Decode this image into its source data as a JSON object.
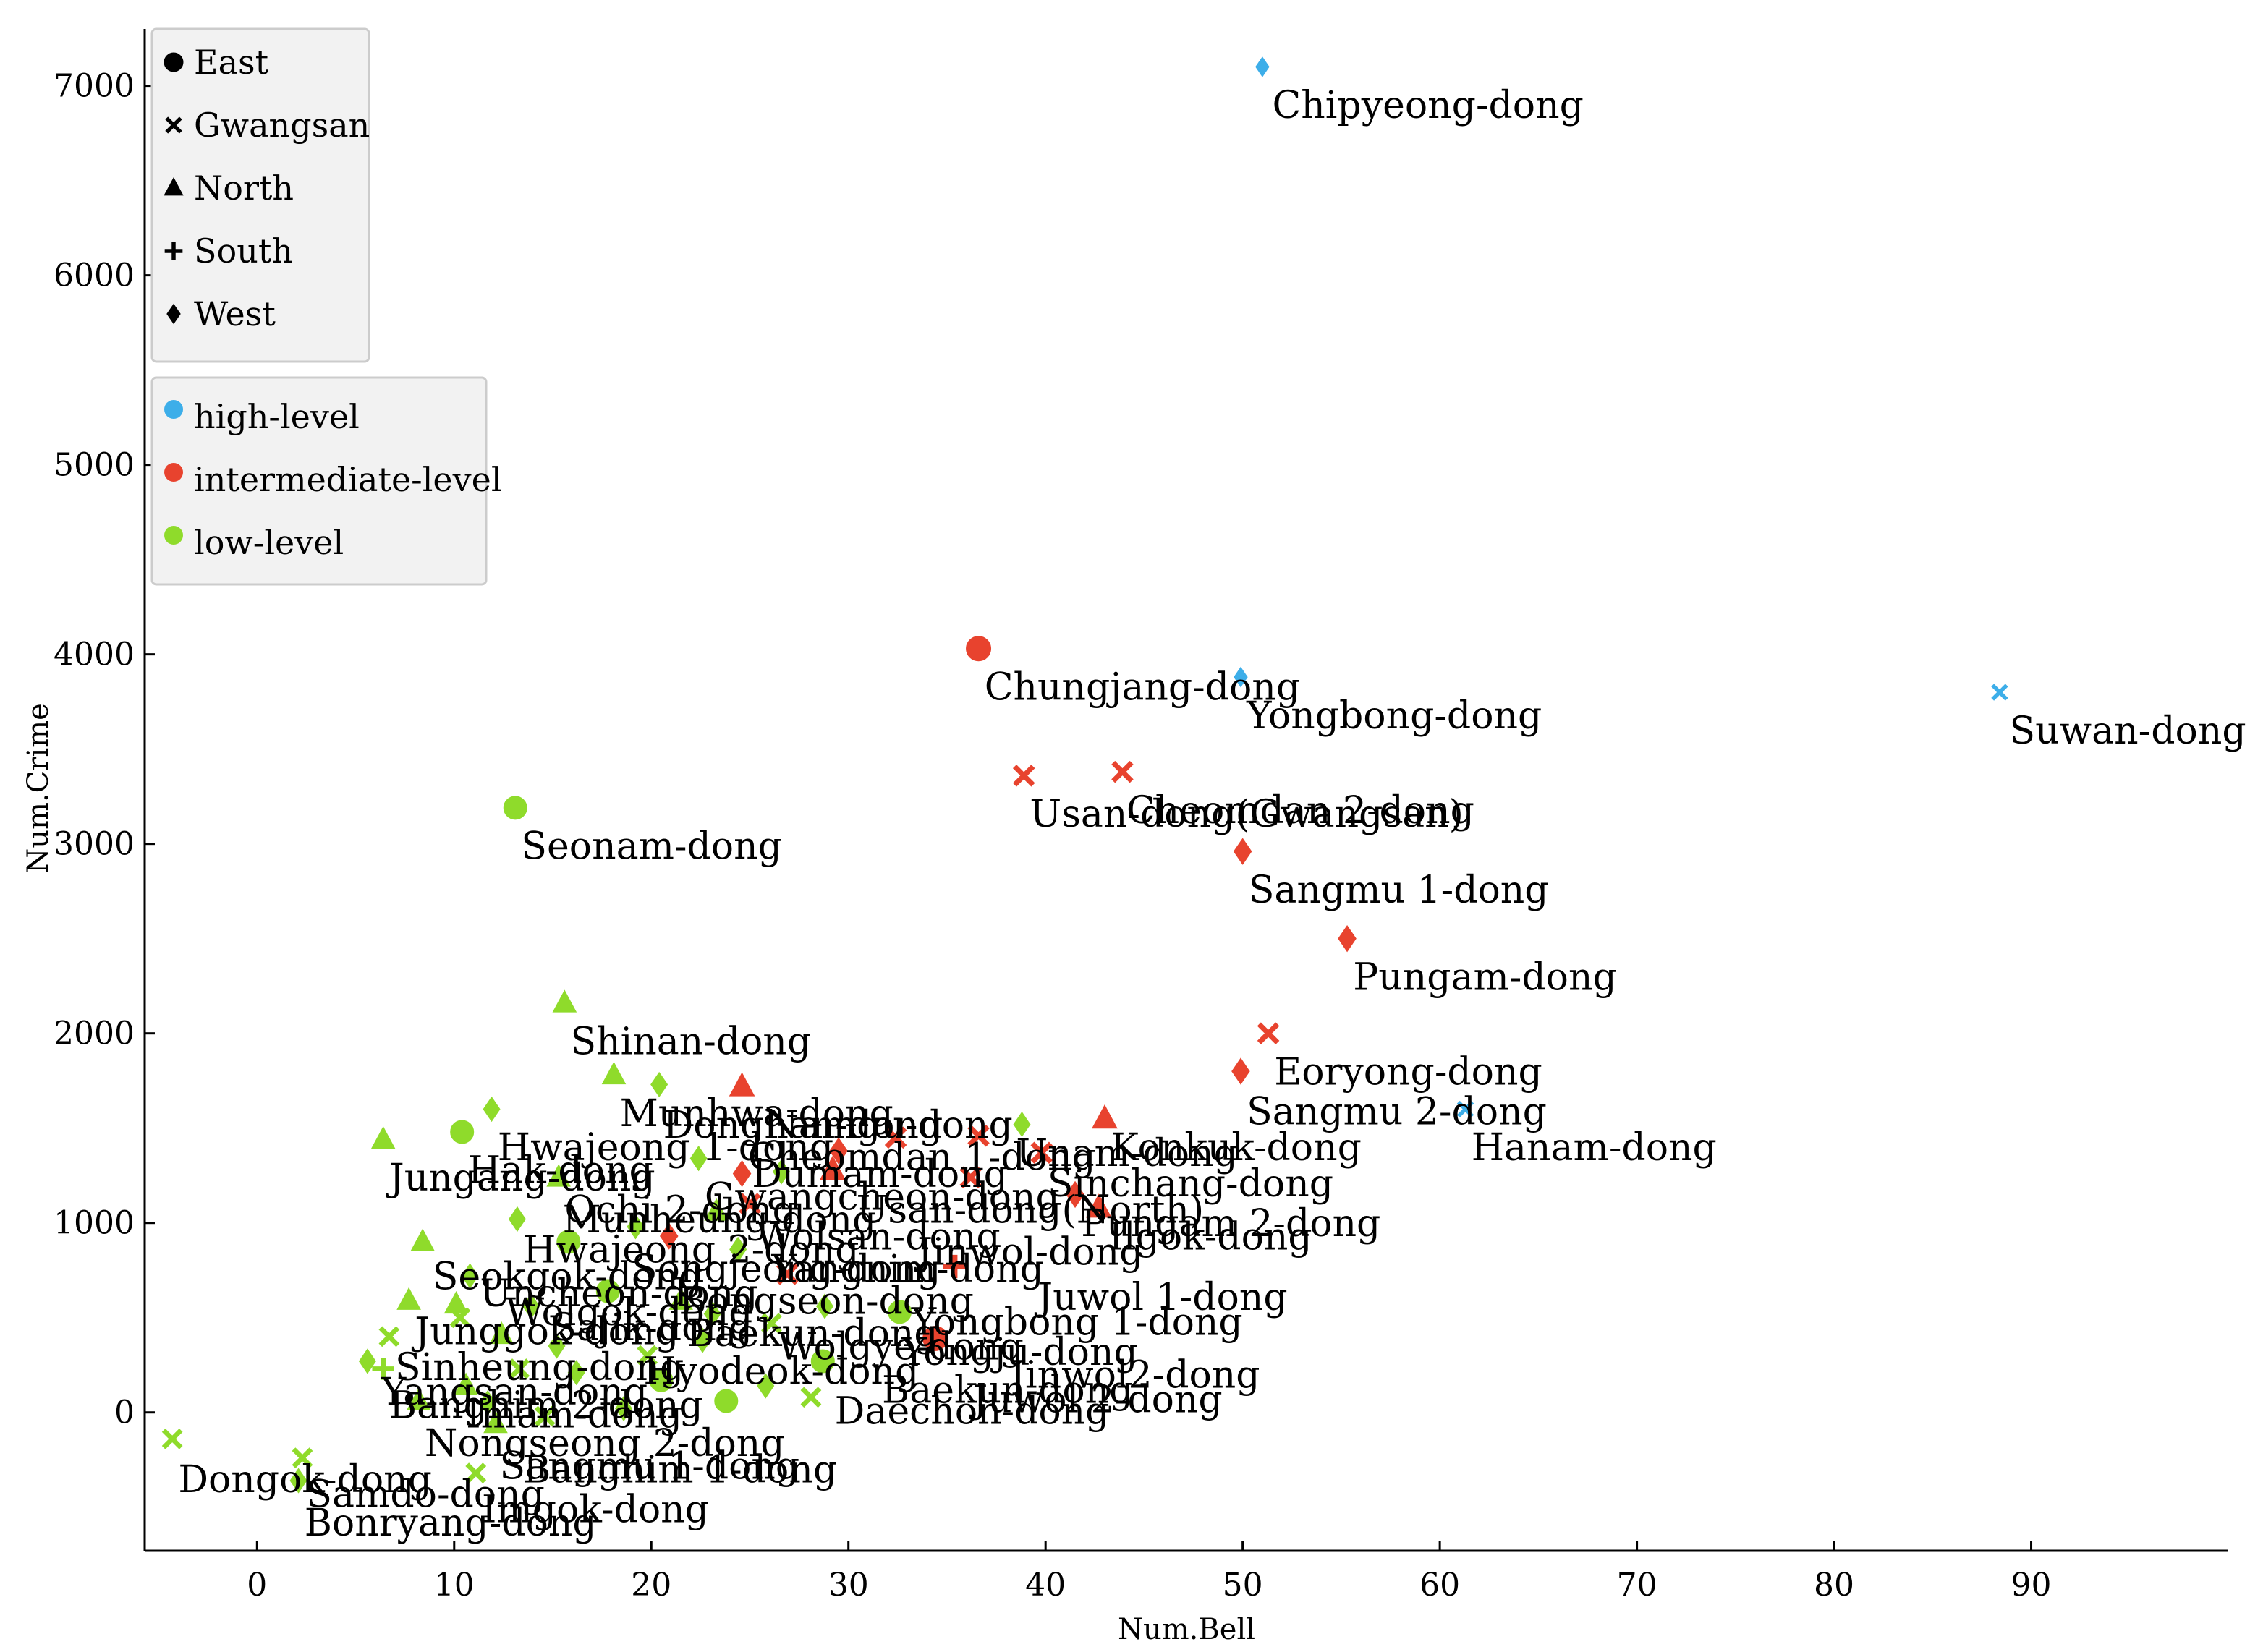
{
  "chart_data": {
    "type": "scatter",
    "xlabel": "Num.Bell",
    "ylabel": "Num.Crime",
    "xlim": [
      -5.7,
      100
    ],
    "ylim": [
      -730,
      7300
    ],
    "xticks": [
      0,
      10,
      20,
      30,
      40,
      50,
      60,
      70,
      80,
      90
    ],
    "yticks": [
      0,
      1000,
      2000,
      3000,
      4000,
      5000,
      6000,
      7000
    ],
    "grid": false,
    "legend_shape": {
      "placement": "top-left",
      "entries": [
        {
          "label": "East",
          "marker": "circle"
        },
        {
          "label": "Gwangsan",
          "marker": "x"
        },
        {
          "label": "North",
          "marker": "triangle"
        },
        {
          "label": "South",
          "marker": "plus"
        },
        {
          "label": "West",
          "marker": "diamond"
        }
      ]
    },
    "legend_color": {
      "placement": "top-left",
      "entries": [
        {
          "label": "high-level",
          "color": "#3daee9"
        },
        {
          "label": "intermediate-level",
          "color": "#e8432e"
        },
        {
          "label": "low-level",
          "color": "#8fdb2b"
        }
      ]
    },
    "colors": {
      "high": "#3daee9",
      "mid": "#e8432e",
      "low": "#8fdb2b"
    },
    "points": [
      {
        "x": 51,
        "y": 7100,
        "m": "diamond",
        "c": "high"
      },
      {
        "x": 88.4,
        "y": 3800,
        "m": "x",
        "c": "high"
      },
      {
        "x": 49.9,
        "y": 3880,
        "m": "diamond",
        "c": "high"
      },
      {
        "x": 61.3,
        "y": 1600,
        "m": "x",
        "c": "high"
      },
      {
        "x": 36.6,
        "y": 4030,
        "m": "circle",
        "c": "mid"
      },
      {
        "x": 38.9,
        "y": 3360,
        "m": "x",
        "c": "mid"
      },
      {
        "x": 43.9,
        "y": 3380,
        "m": "x",
        "c": "mid"
      },
      {
        "x": 50,
        "y": 2960,
        "m": "diamond",
        "c": "mid"
      },
      {
        "x": 55.3,
        "y": 2500,
        "m": "diamond",
        "c": "mid"
      },
      {
        "x": 51.3,
        "y": 2000,
        "m": "x",
        "c": "mid"
      },
      {
        "x": 49.9,
        "y": 1800,
        "m": "diamond",
        "c": "mid"
      },
      {
        "x": 24.6,
        "y": 1720,
        "m": "triangle",
        "c": "mid"
      },
      {
        "x": 43,
        "y": 1550,
        "m": "triangle",
        "c": "mid"
      },
      {
        "x": 36.6,
        "y": 1460,
        "m": "x",
        "c": "mid"
      },
      {
        "x": 32.4,
        "y": 1450,
        "m": "x",
        "c": "mid"
      },
      {
        "x": 39.8,
        "y": 1370,
        "m": "x",
        "c": "mid"
      },
      {
        "x": 29.5,
        "y": 1380,
        "m": "diamond",
        "c": "mid"
      },
      {
        "x": 24.6,
        "y": 1260,
        "m": "diamond",
        "c": "mid"
      },
      {
        "x": 29.2,
        "y": 1280,
        "m": "triangle",
        "c": "mid"
      },
      {
        "x": 36.2,
        "y": 1240,
        "m": "x",
        "c": "mid"
      },
      {
        "x": 41.5,
        "y": 1150,
        "m": "diamond",
        "c": "mid"
      },
      {
        "x": 42.7,
        "y": 1080,
        "m": "triangle",
        "c": "mid"
      },
      {
        "x": 25,
        "y": 1100,
        "m": "x",
        "c": "mid"
      },
      {
        "x": 20.9,
        "y": 930,
        "m": "diamond",
        "c": "mid"
      },
      {
        "x": 35.4,
        "y": 770,
        "m": "plus",
        "c": "mid"
      },
      {
        "x": 26.9,
        "y": 730,
        "m": "x",
        "c": "mid"
      },
      {
        "x": 34.4,
        "y": 390,
        "m": "circle",
        "c": "mid"
      },
      {
        "x": 13.1,
        "y": 3190,
        "m": "circle",
        "c": "low"
      },
      {
        "x": 15.6,
        "y": 2160,
        "m": "triangle",
        "c": "low"
      },
      {
        "x": 18.1,
        "y": 1780,
        "m": "triangle",
        "c": "low"
      },
      {
        "x": 20.4,
        "y": 1730,
        "m": "diamond",
        "c": "low"
      },
      {
        "x": 11.9,
        "y": 1600,
        "m": "diamond",
        "c": "low"
      },
      {
        "x": 10.4,
        "y": 1480,
        "m": "circle",
        "c": "low"
      },
      {
        "x": 6.4,
        "y": 1440,
        "m": "triangle",
        "c": "low"
      },
      {
        "x": 22.4,
        "y": 1340,
        "m": "diamond",
        "c": "low"
      },
      {
        "x": 38.8,
        "y": 1520,
        "m": "diamond",
        "c": "low"
      },
      {
        "x": 15.3,
        "y": 1240,
        "m": "triangle",
        "c": "low"
      },
      {
        "x": 13.2,
        "y": 1020,
        "m": "diamond",
        "c": "low"
      },
      {
        "x": 8.4,
        "y": 900,
        "m": "triangle",
        "c": "low"
      },
      {
        "x": 15.8,
        "y": 900,
        "m": "circle",
        "c": "low"
      },
      {
        "x": 26.6,
        "y": 1270,
        "m": "diamond",
        "c": "low"
      },
      {
        "x": 19.2,
        "y": 980,
        "m": "diamond",
        "c": "low"
      },
      {
        "x": 23.3,
        "y": 1060,
        "m": "triangle",
        "c": "low"
      },
      {
        "x": 24.4,
        "y": 860,
        "m": "diamond",
        "c": "low"
      },
      {
        "x": 7.7,
        "y": 590,
        "m": "triangle",
        "c": "low"
      },
      {
        "x": 10.8,
        "y": 720,
        "m": "diamond",
        "c": "low"
      },
      {
        "x": 10.1,
        "y": 570,
        "m": "triangle",
        "c": "low"
      },
      {
        "x": 10.3,
        "y": 500,
        "m": "x",
        "c": "low"
      },
      {
        "x": 13.9,
        "y": 560,
        "m": "diamond",
        "c": "low"
      },
      {
        "x": 17.8,
        "y": 640,
        "m": "circle",
        "c": "low"
      },
      {
        "x": 21.5,
        "y": 590,
        "m": "triangle",
        "c": "low"
      },
      {
        "x": 23.1,
        "y": 520,
        "m": "diamond",
        "c": "low"
      },
      {
        "x": 26.1,
        "y": 470,
        "m": "x",
        "c": "low"
      },
      {
        "x": 28.8,
        "y": 560,
        "m": "diamond",
        "c": "low"
      },
      {
        "x": 32.6,
        "y": 530,
        "m": "circle",
        "c": "low"
      },
      {
        "x": 6.7,
        "y": 400,
        "m": "x",
        "c": "low"
      },
      {
        "x": 12.4,
        "y": 410,
        "m": "triangle",
        "c": "low"
      },
      {
        "x": 15.2,
        "y": 350,
        "m": "diamond",
        "c": "low"
      },
      {
        "x": 19.8,
        "y": 300,
        "m": "x",
        "c": "low"
      },
      {
        "x": 22.6,
        "y": 380,
        "m": "diamond",
        "c": "low"
      },
      {
        "x": 28.7,
        "y": 270,
        "m": "circle",
        "c": "low"
      },
      {
        "x": 5.6,
        "y": 270,
        "m": "diamond",
        "c": "low"
      },
      {
        "x": 6.4,
        "y": 230,
        "m": "plus",
        "c": "low"
      },
      {
        "x": 10.6,
        "y": 140,
        "m": "triangle",
        "c": "low"
      },
      {
        "x": 13.3,
        "y": 230,
        "m": "x",
        "c": "low"
      },
      {
        "x": 16.2,
        "y": 210,
        "m": "diamond",
        "c": "low"
      },
      {
        "x": 20.5,
        "y": 170,
        "m": "circle",
        "c": "low"
      },
      {
        "x": 25.8,
        "y": 140,
        "m": "diamond",
        "c": "low"
      },
      {
        "x": 28.1,
        "y": 80,
        "m": "x",
        "c": "low"
      },
      {
        "x": 8.2,
        "y": 60,
        "m": "triangle",
        "c": "low"
      },
      {
        "x": 11.7,
        "y": 50,
        "m": "diamond",
        "c": "low"
      },
      {
        "x": 14.6,
        "y": -20,
        "m": "x",
        "c": "low"
      },
      {
        "x": 18.6,
        "y": 20,
        "m": "diamond",
        "c": "low"
      },
      {
        "x": 23.8,
        "y": 60,
        "m": "circle",
        "c": "low"
      },
      {
        "x": 12.1,
        "y": -60,
        "m": "triangle",
        "c": "low"
      },
      {
        "x": -4.3,
        "y": -140,
        "m": "x",
        "c": "low"
      },
      {
        "x": 2.3,
        "y": -240,
        "m": "x",
        "c": "low"
      },
      {
        "x": 11.1,
        "y": -320,
        "m": "x",
        "c": "low"
      },
      {
        "x": 2.1,
        "y": -360,
        "m": "diamond",
        "c": "low"
      }
    ],
    "labels": [
      {
        "t": "Chipyeong-dong",
        "x": 51.5,
        "y": 6830
      },
      {
        "t": "Suwan-dong",
        "x": 88.9,
        "y": 3530
      },
      {
        "t": "Chungjang-dong",
        "x": 36.9,
        "y": 3760
      },
      {
        "t": "Yongbong-dong",
        "x": 50.2,
        "y": 3610
      },
      {
        "t": "Usan-dong(Gwangsan)",
        "x": 39.2,
        "y": 3090
      },
      {
        "t": "Cheomdan 2-dong",
        "x": 44.1,
        "y": 3110
      },
      {
        "t": "Sangmu 1-dong",
        "x": 50.3,
        "y": 2690
      },
      {
        "t": "Pungam-dong",
        "x": 55.6,
        "y": 2230
      },
      {
        "t": "Seonam-dong",
        "x": 13.4,
        "y": 2920
      },
      {
        "t": "Shinan-dong",
        "x": 15.9,
        "y": 1890
      },
      {
        "t": "Eoryong-dong",
        "x": 51.6,
        "y": 1730
      },
      {
        "t": "Sangmu 2-dong",
        "x": 50.2,
        "y": 1520
      },
      {
        "t": "Hanam-dong",
        "x": 61.6,
        "y": 1330
      },
      {
        "t": "Munhwa-dong",
        "x": 18.4,
        "y": 1510
      },
      {
        "t": "Donghan-dong",
        "x": 20.6,
        "y": 1450
      },
      {
        "t": "Namgu-dong",
        "x": 25.8,
        "y": 1450
      },
      {
        "t": "Hwajeong 1-dong",
        "x": 12.2,
        "y": 1330
      },
      {
        "t": "Cheomdan 1-dong",
        "x": 24.9,
        "y": 1280
      },
      {
        "t": "Konkuk-dong",
        "x": 43.3,
        "y": 1330
      },
      {
        "t": "Unam-dong",
        "x": 38.5,
        "y": 1300
      },
      {
        "t": "Jungang-dong",
        "x": 6.7,
        "y": 1170
      },
      {
        "t": "Hak-dong",
        "x": 10.7,
        "y": 1210
      },
      {
        "t": "Dumam-dong",
        "x": 25.1,
        "y": 1190
      },
      {
        "t": "Sinchang-dong",
        "x": 40.1,
        "y": 1140
      },
      {
        "t": "Gwangcheon-dong",
        "x": 22.7,
        "y": 1070
      },
      {
        "t": "Ochi 2-dong",
        "x": 15.6,
        "y": 1000
      },
      {
        "t": "Munheung-dong",
        "x": 15.5,
        "y": 950
      },
      {
        "t": "Usan-dong(North)",
        "x": 30.4,
        "y": 1000
      },
      {
        "t": "Pungam 2-dong",
        "x": 41.8,
        "y": 930
      },
      {
        "t": "Ilgok-dong",
        "x": 43.2,
        "y": 860
      },
      {
        "t": "Hwajeong 2-dong",
        "x": 13.5,
        "y": 790
      },
      {
        "t": "Wolsan-dong",
        "x": 25.3,
        "y": 860
      },
      {
        "t": "Seokgok-dong",
        "x": 8.9,
        "y": 650
      },
      {
        "t": "Songjeong-dong",
        "x": 19,
        "y": 690
      },
      {
        "t": "Jinwol-dong",
        "x": 33.5,
        "y": 780
      },
      {
        "t": "Yangnim-dong",
        "x": 26.1,
        "y": 690
      },
      {
        "t": "Uncheon-dong",
        "x": 11.3,
        "y": 560
      },
      {
        "t": "Wolgok-dong",
        "x": 12.6,
        "y": 460
      },
      {
        "t": "Juwol 1-dong",
        "x": 39.6,
        "y": 540
      },
      {
        "t": "Bongseon-dong",
        "x": 21.4,
        "y": 520
      },
      {
        "t": "Yongbong 1-dong",
        "x": 33.2,
        "y": 410
      },
      {
        "t": "Junggok-dong",
        "x": 8,
        "y": 360
      },
      {
        "t": "Sajik-dong",
        "x": 14.9,
        "y": 380
      },
      {
        "t": "Baekun-dong",
        "x": 21.8,
        "y": 350
      },
      {
        "t": "Yongju-dong",
        "x": 32.7,
        "y": 250
      },
      {
        "t": "Wolgye-dong",
        "x": 26.4,
        "y": 280
      },
      {
        "t": "Sinheung-dong",
        "x": 7,
        "y": 170
      },
      {
        "t": "Jinwol2-dong",
        "x": 38.2,
        "y": 130
      },
      {
        "t": "Yangsan-dong",
        "x": 6.3,
        "y": 40
      },
      {
        "t": "Hyodeok-dong",
        "x": 19.6,
        "y": 150
      },
      {
        "t": "Baekun-dong",
        "x": 31.7,
        "y": 50
      },
      {
        "t": "Daechon-dong",
        "x": 29.3,
        "y": -60
      },
      {
        "t": "Juwol 2-dong",
        "x": 36.3,
        "y": 0
      },
      {
        "t": "Banghim 2-dong",
        "x": 6.7,
        "y": -30
      },
      {
        "t": "Imam-dong",
        "x": 10.6,
        "y": -80
      },
      {
        "t": "Nongseong 2-dong",
        "x": 8.5,
        "y": -230
      },
      {
        "t": "Sangmu 1-dong",
        "x": 12.3,
        "y": -350
      },
      {
        "t": "Banghim 1-dong",
        "x": 13.5,
        "y": -370
      },
      {
        "t": "Dongok-dong",
        "x": -4,
        "y": -420
      },
      {
        "t": "Samdo-dong",
        "x": 2.5,
        "y": -500
      },
      {
        "t": "Imgok-dong",
        "x": 11.4,
        "y": -580
      },
      {
        "t": "Bonryang-dong",
        "x": 2.4,
        "y": -650
      }
    ]
  }
}
